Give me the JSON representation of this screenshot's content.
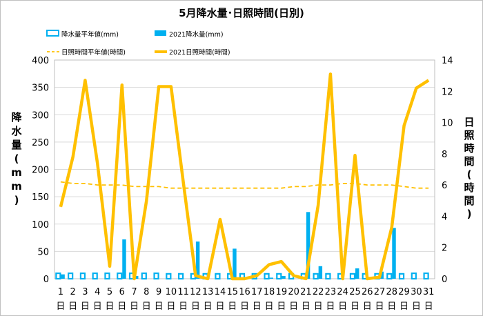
{
  "chart_data": {
    "type": "bar+line",
    "title": "5月降水量･日照時間(日別)",
    "categories": [
      "1",
      "2",
      "3",
      "4",
      "5",
      "6",
      "7",
      "8",
      "9",
      "10",
      "11",
      "12",
      "13",
      "14",
      "15",
      "16",
      "17",
      "18",
      "19",
      "20",
      "21",
      "22",
      "23",
      "24",
      "25",
      "26",
      "27",
      "28",
      "29",
      "30",
      "31"
    ],
    "x_unit": "日",
    "left_axis": {
      "label": "降水量(mm)",
      "range": [
        0,
        400
      ],
      "ticks": [
        0,
        50,
        100,
        150,
        200,
        250,
        300,
        350,
        400
      ]
    },
    "right_axis": {
      "label": "日照時間(時間)",
      "range": [
        0,
        14
      ],
      "ticks": [
        0,
        2,
        4,
        6,
        8,
        10,
        12,
        14
      ]
    },
    "grid": true,
    "legend_position": "top",
    "series": [
      {
        "name": "降水量平年値(mm)",
        "type": "bar",
        "axis": "left",
        "color": "#00b0f0",
        "style": "outline",
        "values": [
          10,
          10,
          10,
          10,
          10,
          10,
          10,
          10,
          10,
          9,
          9,
          9,
          9,
          9,
          9,
          9,
          9,
          9,
          9,
          9,
          9,
          9,
          9,
          9,
          9,
          9,
          9,
          9,
          9,
          10,
          10
        ]
      },
      {
        "name": "2021降水量(mm)",
        "type": "bar",
        "axis": "left",
        "color": "#00b0f0",
        "style": "solid",
        "values": [
          8,
          0,
          0,
          0,
          0,
          72,
          5,
          0,
          0,
          0,
          0,
          68,
          0,
          0,
          55,
          0,
          0,
          2,
          5,
          0,
          122,
          23,
          0,
          0,
          19,
          0,
          13,
          93,
          0,
          0,
          0
        ]
      },
      {
        "name": "日照時間平年値(時間)",
        "type": "line",
        "axis": "right",
        "color": "#ffc000",
        "style": "dashed",
        "values": [
          6.2,
          6.1,
          6.1,
          6.0,
          6.0,
          6.0,
          5.9,
          5.9,
          5.9,
          5.8,
          5.8,
          5.8,
          5.8,
          5.8,
          5.8,
          5.8,
          5.8,
          5.8,
          5.8,
          5.9,
          5.9,
          6.0,
          6.0,
          6.1,
          6.1,
          6.0,
          6.0,
          6.0,
          5.9,
          5.8,
          5.8
        ]
      },
      {
        "name": "2021日照時間(時間)",
        "type": "line",
        "axis": "right",
        "color": "#ffc000",
        "style": "solid",
        "values": [
          4.6,
          7.8,
          12.7,
          7.4,
          0.8,
          12.4,
          0.0,
          5.0,
          12.3,
          12.3,
          6.2,
          0.2,
          0.0,
          3.8,
          0.0,
          0.0,
          0.2,
          0.9,
          1.1,
          0.2,
          0.0,
          4.7,
          13.1,
          0.0,
          7.9,
          0.0,
          0.1,
          3.3,
          9.8,
          12.2,
          12.7
        ]
      }
    ]
  },
  "icons": {
    "legend_bar_outline": "outlined-bar-swatch",
    "legend_bar_solid": "solid-bar-swatch",
    "legend_line_dashed": "dashed-line-swatch",
    "legend_line_solid": "solid-line-swatch"
  }
}
